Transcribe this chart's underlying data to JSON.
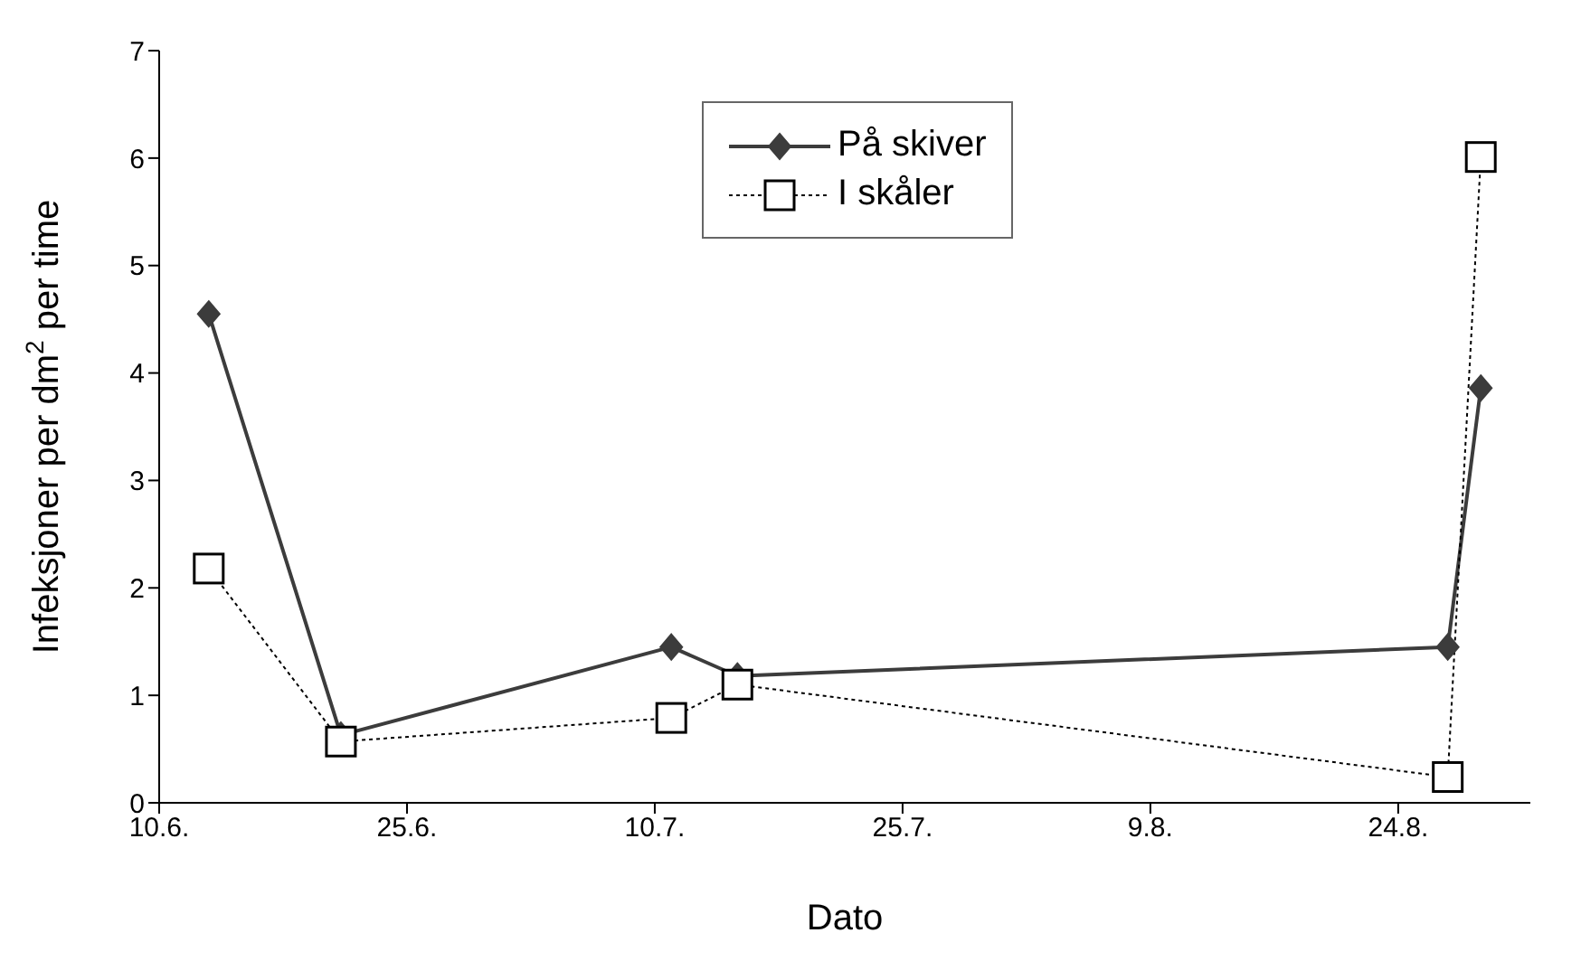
{
  "chart_data": {
    "type": "line",
    "xlabel": "Dato",
    "ylabel": "Infeksjoner per dm$^{2}$ per time",
    "x": [
      "--06-13",
      "--06-21",
      "--07-11",
      "--07-15",
      "--08-27",
      "--08-29"
    ],
    "series": [
      {
        "name": "På skiver",
        "color": "#3c3c3c",
        "marker": "diamond",
        "line_style": "solid",
        "values": [
          4.55,
          0.63,
          1.45,
          1.18,
          1.45,
          3.86
        ]
      },
      {
        "name": "I skåler",
        "color": "#000000",
        "marker": "square",
        "line_style": "dotted",
        "values": [
          2.18,
          0.57,
          0.79,
          1.1,
          0.24,
          6.01
        ]
      }
    ],
    "xlim": [
      "--06-10",
      "--09-01"
    ],
    "xticks": [
      {
        "value": "--06-10",
        "label": "10.6."
      },
      {
        "value": "--06-25",
        "label": "25.6."
      },
      {
        "value": "--07-10",
        "label": "10.7."
      },
      {
        "value": "--07-25",
        "label": "25.7."
      },
      {
        "value": "--08-09",
        "label": "9.8."
      },
      {
        "value": "--08-24",
        "label": "24.8."
      }
    ],
    "ylim": [
      0,
      7
    ],
    "yticks": [
      0,
      1,
      2,
      3,
      4,
      5,
      6,
      7
    ],
    "grid": false,
    "legend": "top"
  }
}
